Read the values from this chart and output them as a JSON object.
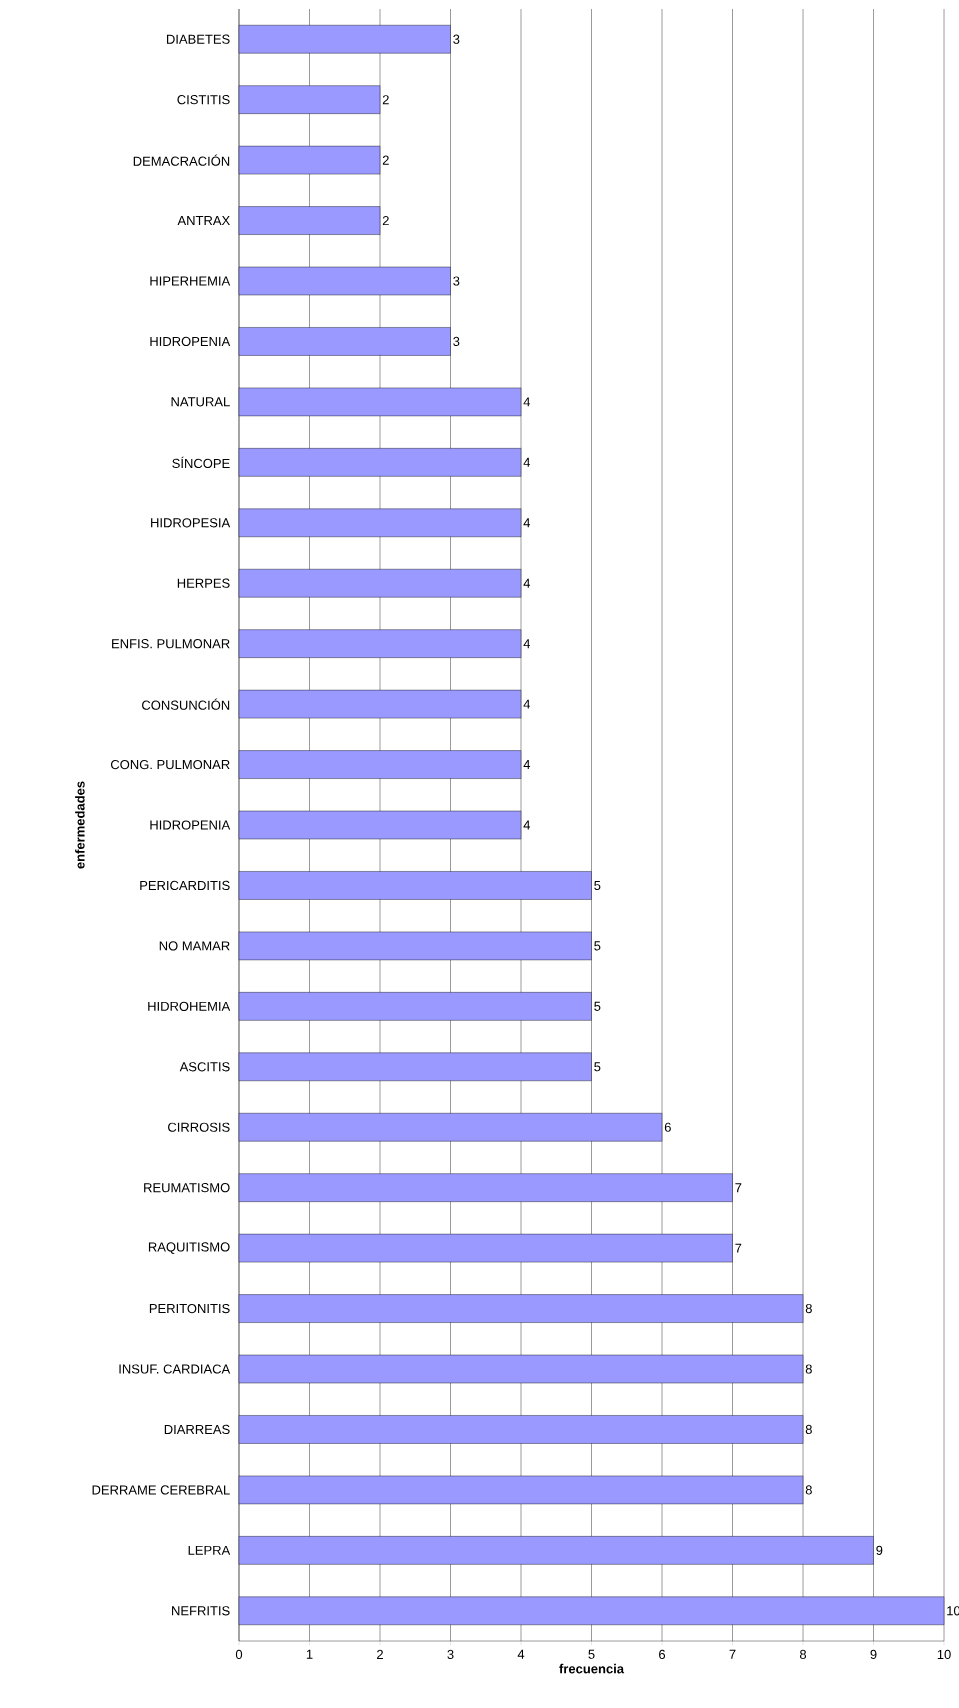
{
  "chart_data": {
    "type": "bar",
    "orientation": "horizontal",
    "xlabel": "frecuencia",
    "ylabel": "enfermedades",
    "categories": [
      "DIABETES",
      "CISTITIS",
      "DEMACRACIÓN",
      "ANTRAX",
      "HIPERHEMIA",
      "HIDROPENIA",
      "NATURAL",
      "SÍNCOPE",
      "HIDROPESIA",
      "HERPES",
      "ENFIS. PULMONAR",
      "CONSUNCIÓN",
      "CONG. PULMONAR",
      "HIDROPENIA",
      "PERICARDITIS",
      "NO MAMAR",
      "HIDROHEMIA",
      "ASCITIS",
      "CIRROSIS",
      "REUMATISMO",
      "RAQUITISMO",
      "PERITONITIS",
      "INSUF. CARDIACA",
      "DIARREAS",
      "DERRAME CEREBRAL",
      "LEPRA",
      "NEFRITIS"
    ],
    "values": [
      3,
      2,
      2,
      2,
      3,
      3,
      4,
      4,
      4,
      4,
      4,
      4,
      4,
      4,
      5,
      5,
      5,
      5,
      6,
      7,
      7,
      8,
      8,
      8,
      8,
      9,
      10
    ],
    "color": "#9999ff",
    "xlim": [
      0,
      10
    ],
    "xticks": [
      0,
      1,
      2,
      3,
      4,
      5,
      6,
      7,
      8,
      9,
      10
    ],
    "grid": "x",
    "data_labels": true
  }
}
